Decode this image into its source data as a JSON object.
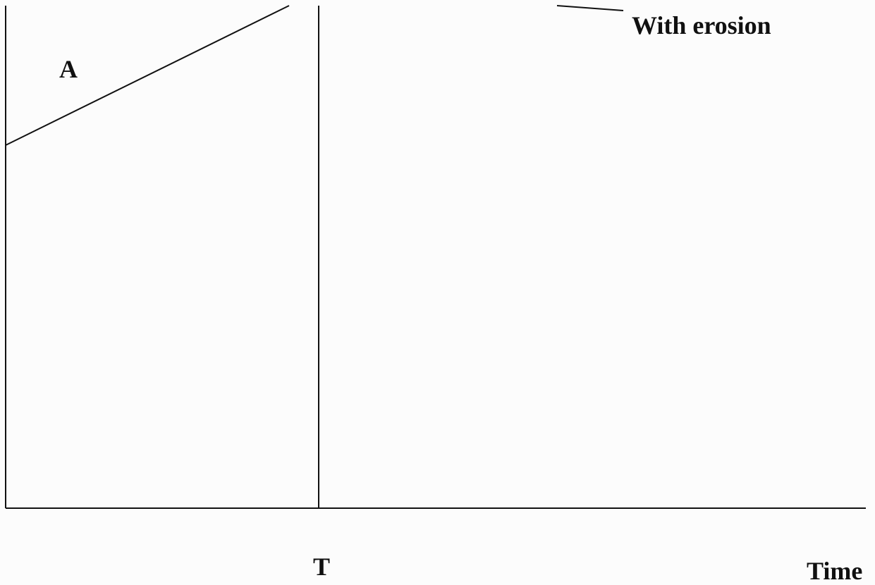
{
  "diagram": {
    "labels": {
      "region_a": "A",
      "curve_with_erosion": "With erosion",
      "time_marker": "T",
      "x_axis": "Time"
    }
  }
}
